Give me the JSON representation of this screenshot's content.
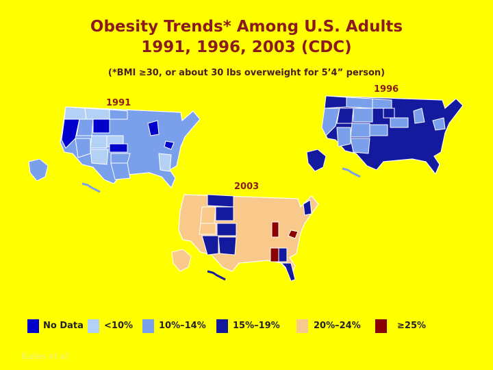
{
  "title_line1": "Obesity Trends* Among U.S. Adults",
  "title_line2": "1991, 1996, 2003 (CDC)",
  "subtitle": "(*BMI ≥30, or about 30 lbs overweight for 5’4” person)",
  "maps": [
    {
      "year": "1991"
    },
    {
      "year": "1996"
    },
    {
      "year": "2003"
    }
  ],
  "legend": [
    {
      "label": "No Data",
      "color": "#0000cc"
    },
    {
      "label": "<10%",
      "color": "#b3d1f5"
    },
    {
      "label": "10%–14%",
      "color": "#7aa0ec"
    },
    {
      "label": "15%–19%",
      "color": "#141a9e"
    },
    {
      "label": "20%–24%",
      "color": "#f9c98c"
    },
    {
      "label": "≥25%",
      "color": "#8b0000"
    }
  ],
  "credit": "Kales et al"
}
